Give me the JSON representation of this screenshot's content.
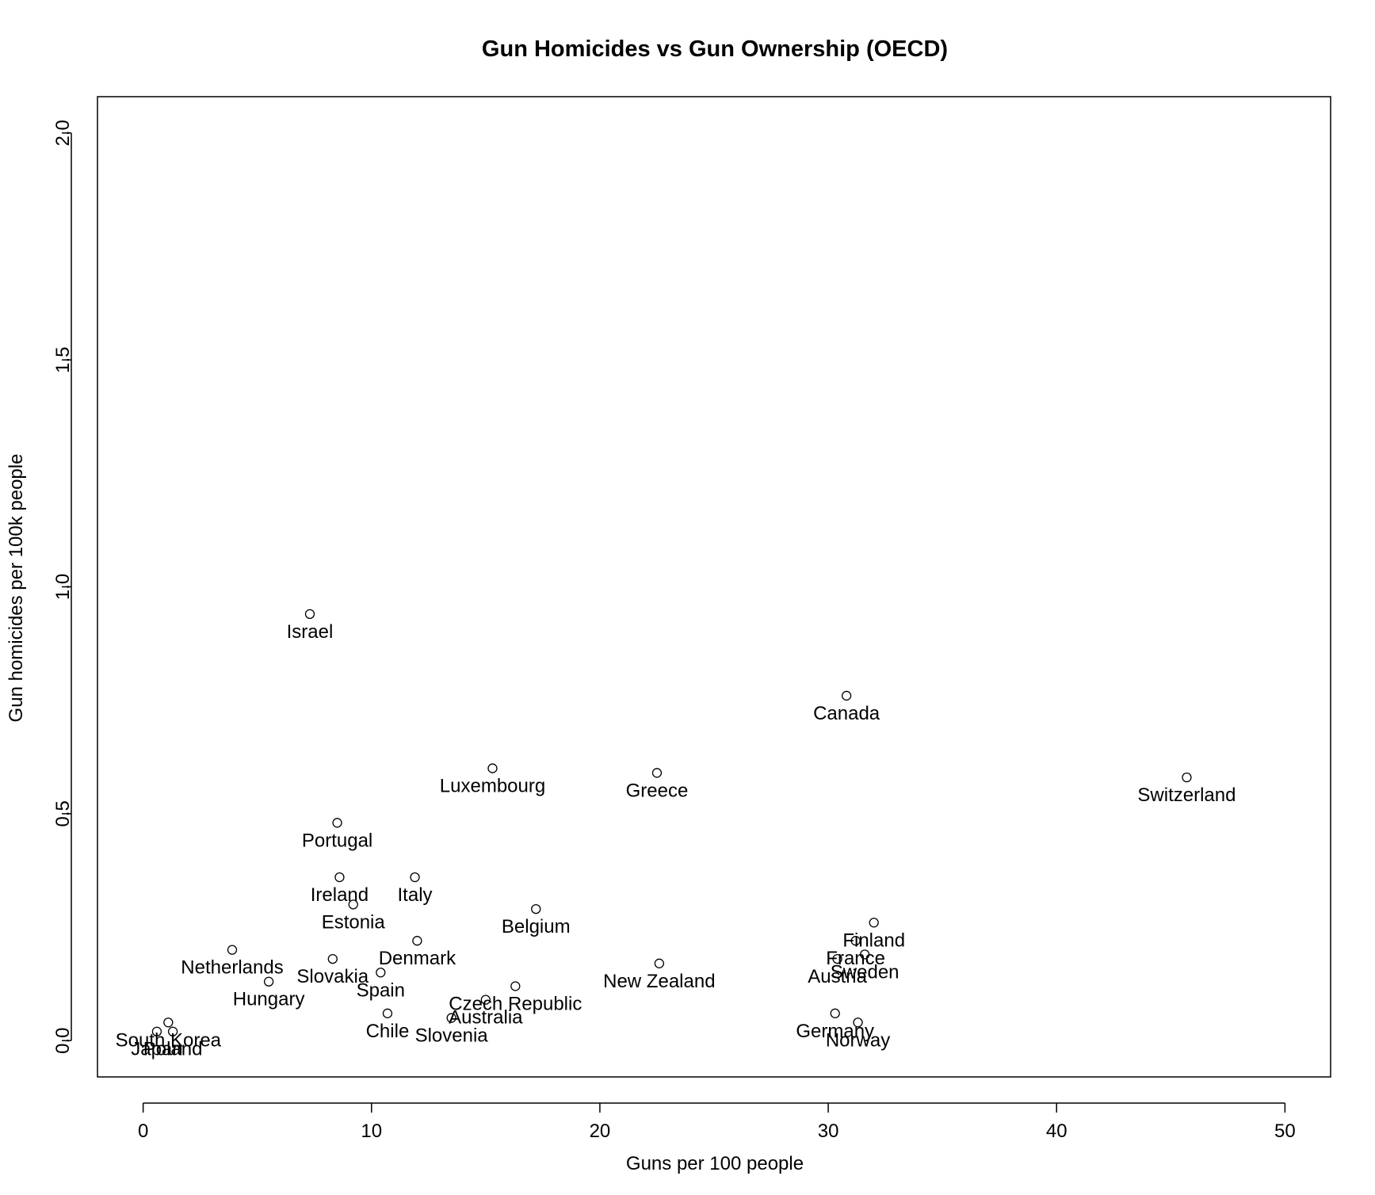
{
  "chart_data": {
    "type": "scatter",
    "title": "Gun Homicides vs Gun Ownership (OECD)",
    "xlabel": "Guns per 100 people",
    "ylabel": "Gun homicides per 100k people",
    "xlim": [
      -2,
      52
    ],
    "ylim": [
      -0.08,
      2.08
    ],
    "xticks": [
      0,
      10,
      20,
      30,
      40,
      50
    ],
    "yticks": [
      0.0,
      0.5,
      1.0,
      1.5,
      2.0
    ],
    "xtick_labels": [
      "0",
      "10",
      "20",
      "30",
      "40",
      "50"
    ],
    "ytick_labels": [
      "0.0",
      "0.5",
      "1.0",
      "1.5",
      "2.0"
    ],
    "grid": false,
    "marker": "open-circle",
    "points": [
      {
        "label": "Israel",
        "x": 7.3,
        "y": 0.94
      },
      {
        "label": "Canada",
        "x": 30.8,
        "y": 0.76
      },
      {
        "label": "Luxembourg",
        "x": 15.3,
        "y": 0.6
      },
      {
        "label": "Greece",
        "x": 22.5,
        "y": 0.59
      },
      {
        "label": "Switzerland",
        "x": 45.7,
        "y": 0.58
      },
      {
        "label": "Portugal",
        "x": 8.5,
        "y": 0.48
      },
      {
        "label": "Ireland",
        "x": 8.6,
        "y": 0.36
      },
      {
        "label": "Italy",
        "x": 11.9,
        "y": 0.36
      },
      {
        "label": "Estonia",
        "x": 9.2,
        "y": 0.3
      },
      {
        "label": "Belgium",
        "x": 17.2,
        "y": 0.29
      },
      {
        "label": "Finland",
        "x": 32.0,
        "y": 0.26
      },
      {
        "label": "Denmark",
        "x": 12.0,
        "y": 0.22
      },
      {
        "label": "Netherlands",
        "x": 3.9,
        "y": 0.2
      },
      {
        "label": "France",
        "x": 31.2,
        "y": 0.22
      },
      {
        "label": "Sweden",
        "x": 31.6,
        "y": 0.19
      },
      {
        "label": "Austria",
        "x": 30.4,
        "y": 0.18
      },
      {
        "label": "Slovakia",
        "x": 8.3,
        "y": 0.18
      },
      {
        "label": "New Zealand",
        "x": 22.6,
        "y": 0.17
      },
      {
        "label": "Spain",
        "x": 10.4,
        "y": 0.15
      },
      {
        "label": "Hungary",
        "x": 5.5,
        "y": 0.13
      },
      {
        "label": "Czech Republic",
        "x": 16.3,
        "y": 0.12
      },
      {
        "label": "Australia",
        "x": 15.0,
        "y": 0.09
      },
      {
        "label": "Chile",
        "x": 10.7,
        "y": 0.06
      },
      {
        "label": "Germany",
        "x": 30.3,
        "y": 0.06
      },
      {
        "label": "Slovenia",
        "x": 13.5,
        "y": 0.05
      },
      {
        "label": "Norway",
        "x": 31.3,
        "y": 0.04
      },
      {
        "label": "South Korea",
        "x": 1.1,
        "y": 0.04
      },
      {
        "label": "Poland",
        "x": 1.3,
        "y": 0.02
      },
      {
        "label": "Japan",
        "x": 0.6,
        "y": 0.02
      }
    ]
  }
}
